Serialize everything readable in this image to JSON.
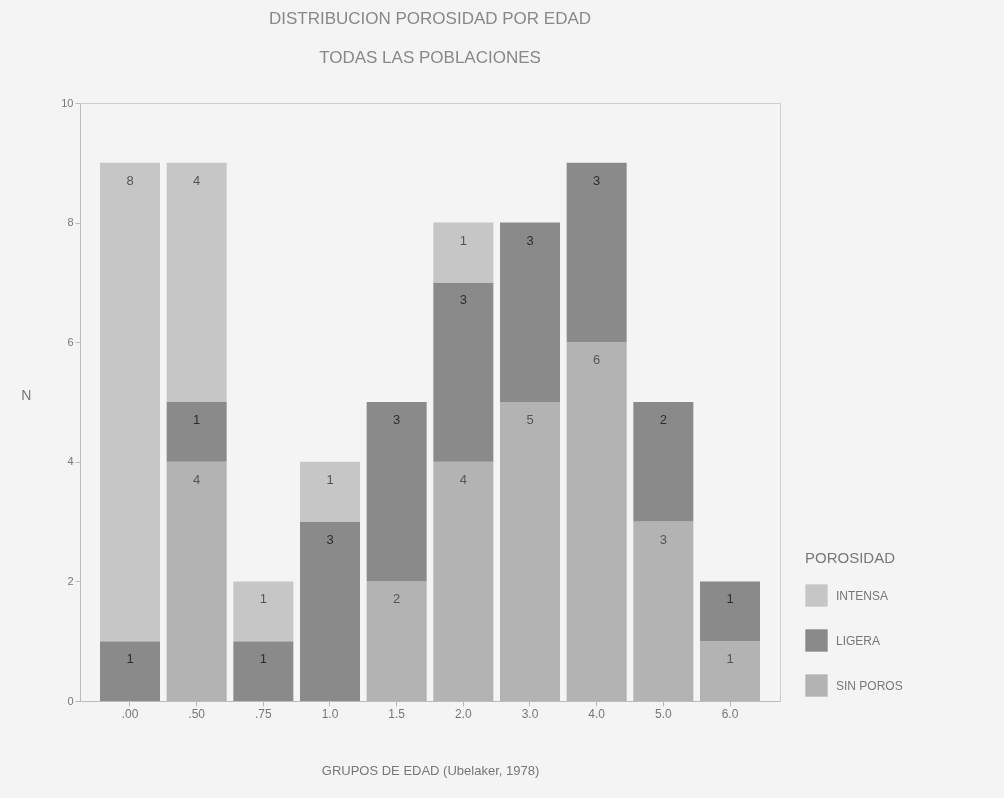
{
  "chart_data": {
    "type": "bar",
    "title": "DISTRIBUCION POROSIDAD POR EDAD",
    "subtitle": "TODAS LAS POBLACIONES",
    "xlabel": "GRUPOS DE EDAD (Ubelaker, 1978)",
    "ylabel": "N",
    "legend_title": "POROSIDAD",
    "categories": [
      ".00",
      ".50",
      ".75",
      "1.0",
      "1.5",
      "2.0",
      "3.0",
      "4.0",
      "5.0",
      "6.0"
    ],
    "stacked": true,
    "series": [
      {
        "name": "SIN POROS",
        "color": "#b3b3b3",
        "values": [
          null,
          4,
          null,
          null,
          2,
          4,
          5,
          6,
          3,
          1
        ]
      },
      {
        "name": "LIGERA",
        "color": "#8a8a8a",
        "values": [
          1,
          1,
          1,
          3,
          3,
          3,
          3,
          3,
          2,
          1
        ]
      },
      {
        "name": "INTENSA",
        "color": "#c6c6c6",
        "values": [
          8,
          4,
          1,
          1,
          null,
          1,
          null,
          null,
          null,
          null
        ]
      }
    ],
    "ylim": [
      0,
      10
    ],
    "yticks": [
      0,
      2,
      4,
      6,
      8,
      10
    ],
    "grid": false,
    "legend": "bottom right",
    "data_labels": true
  }
}
